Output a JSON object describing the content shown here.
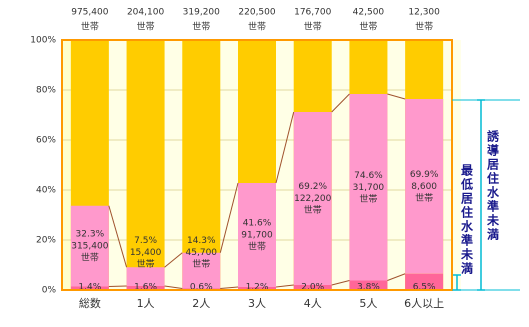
{
  "chart_data": {
    "type": "stacked-bar",
    "categories": [
      "総数",
      "1人",
      "2人",
      "3人",
      "4人",
      "5人",
      "6人以上"
    ],
    "series": [
      {
        "name": "最低居住水準未満",
        "color": "#ff6699",
        "values": [
          1.4,
          1.6,
          0.6,
          1.2,
          2.0,
          3.8,
          6.5
        ],
        "value_labels": [
          "1.4%",
          "1.6%",
          "0.6%",
          "1.2%",
          "2.0%",
          "3.8%",
          "6.5%"
        ]
      },
      {
        "name": "誘導居住水準未満",
        "color": "#ff99cc",
        "values": [
          32.3,
          7.5,
          14.3,
          41.6,
          69.2,
          74.6,
          69.9
        ],
        "value_labels": [
          "32.3%",
          "7.5%",
          "14.3%",
          "41.6%",
          "69.2%",
          "74.6%",
          "69.9%"
        ]
      }
    ],
    "counts": {
      "values": [
        315400,
        15400,
        45700,
        91700,
        122200,
        31700,
        8600
      ],
      "value_labels": [
        "315,400",
        "15,400",
        "45,700",
        "91,700",
        "122,200",
        "31,700",
        "8,600"
      ]
    },
    "totals": {
      "values": [
        975400,
        204100,
        319200,
        220500,
        176700,
        42500,
        12300
      ],
      "value_labels": [
        "975,400",
        "204,100",
        "319,200",
        "220,500",
        "176,700",
        "42,500",
        "12,300"
      ]
    },
    "unit_label": "世帯",
    "rest_color": "#ffcc00",
    "line_color": "#a0522d",
    "ylim": [
      0,
      100
    ],
    "yticks": [
      {
        "value": 0,
        "label": "0%"
      },
      {
        "value": 20,
        "label": "20%"
      },
      {
        "value": 40,
        "label": "40%"
      },
      {
        "value": 60,
        "label": "60%"
      },
      {
        "value": 80,
        "label": "80%"
      },
      {
        "value": 100,
        "label": "100%"
      }
    ],
    "grid": true
  }
}
